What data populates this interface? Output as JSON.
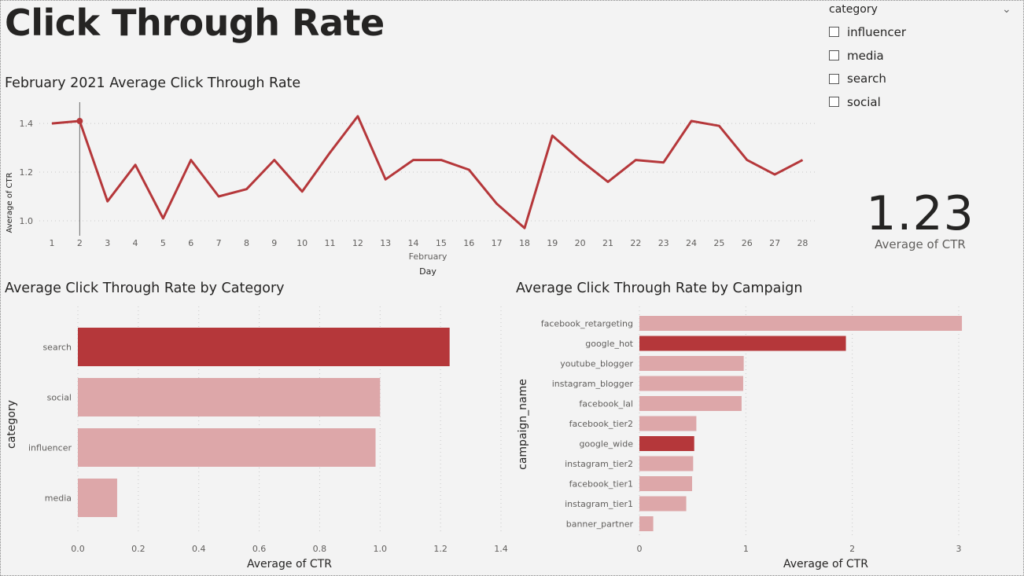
{
  "page": {
    "title": "Click Through Rate"
  },
  "slicer": {
    "title": "category",
    "items": [
      {
        "label": "influencer",
        "checked": false
      },
      {
        "label": "media",
        "checked": false
      },
      {
        "label": "search",
        "checked": false
      },
      {
        "label": "social",
        "checked": false
      }
    ]
  },
  "card": {
    "value": "1.23",
    "label": "Average of CTR"
  },
  "colors": {
    "accent": "#b5373a",
    "light": "#dda7a9",
    "background": "#f3f3f3"
  },
  "chart_data": [
    {
      "type": "line",
      "title": "February 2021 Average Click Through Rate",
      "xlabel": "Day",
      "xsublabel": "February",
      "ylabel": "Average of CTR",
      "x": [
        1,
        2,
        3,
        4,
        5,
        6,
        7,
        8,
        9,
        10,
        11,
        12,
        13,
        14,
        15,
        16,
        17,
        18,
        19,
        20,
        21,
        22,
        23,
        24,
        25,
        26,
        27,
        28
      ],
      "values": [
        1.4,
        1.41,
        1.08,
        1.23,
        1.01,
        1.25,
        1.1,
        1.13,
        1.25,
        1.12,
        1.28,
        1.43,
        1.17,
        1.25,
        1.25,
        1.21,
        1.07,
        0.97,
        1.35,
        1.25,
        1.16,
        1.25,
        1.24,
        1.41,
        1.39,
        1.25,
        1.19,
        1.25
      ],
      "yticks": [
        "1.0",
        "1.2",
        "1.4"
      ],
      "ylim": [
        0.89,
        1.52
      ],
      "highlight_x": 2
    },
    {
      "type": "bar",
      "orientation": "horizontal",
      "title": "Average Click Through Rate by Category",
      "xlabel": "Average of CTR",
      "ylabel": "category",
      "categories": [
        "search",
        "social",
        "influencer",
        "media"
      ],
      "values": [
        1.23,
        1.0,
        0.985,
        0.13
      ],
      "highlighted": [
        true,
        false,
        false,
        false
      ],
      "xticks": [
        "0.0",
        "0.2",
        "0.4",
        "0.6",
        "0.8",
        "1.0",
        "1.2",
        "1.4"
      ],
      "xlim": [
        0,
        1.4
      ]
    },
    {
      "type": "bar",
      "orientation": "horizontal",
      "title": "Average Click Through Rate by Campaign",
      "xlabel": "Average of CTR",
      "ylabel": "campaign_name",
      "categories": [
        "facebook_retargeting",
        "google_hot",
        "youtube_blogger",
        "instagram_blogger",
        "facebook_lal",
        "facebook_tier2",
        "google_wide",
        "instagram_tier2",
        "facebook_tier1",
        "instagram_tier1",
        "banner_partner"
      ],
      "values": [
        3.03,
        1.94,
        0.98,
        0.975,
        0.96,
        0.535,
        0.515,
        0.505,
        0.495,
        0.44,
        0.13
      ],
      "highlighted": [
        false,
        true,
        false,
        false,
        false,
        false,
        true,
        false,
        false,
        false,
        false
      ],
      "xticks": [
        "0",
        "1",
        "2",
        "3"
      ],
      "xlim": [
        0,
        3
      ]
    }
  ]
}
